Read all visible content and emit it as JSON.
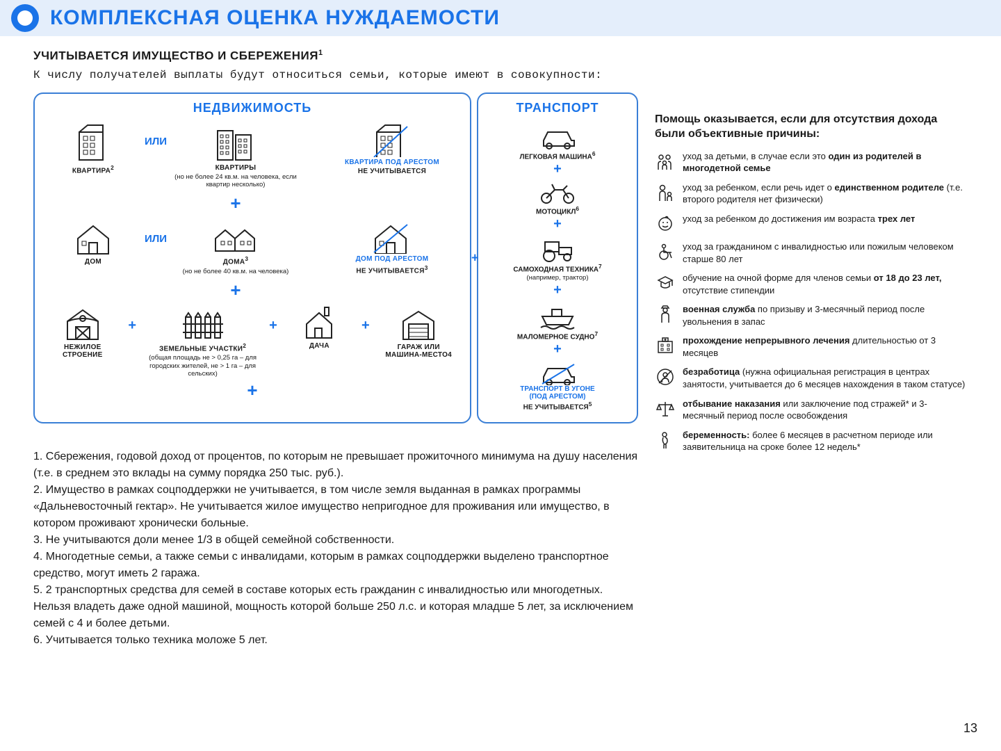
{
  "title": "КОМПЛЕКСНАЯ ОЦЕНКА НУЖДАЕМОСТИ",
  "subhead": "УЧИТЫВАЕТСЯ ИМУЩЕСТВО И СБЕРЕЖЕНИЯ",
  "subhead_sup": "1",
  "intro": "К числу получателей выплаты будут относиться семьи, которые имеют в совокупности:",
  "or_label": "ИЛИ",
  "plus": "+",
  "colors": {
    "accent": "#1a73e8",
    "title_bg": "#e4eefb",
    "text": "#1a1a1a"
  },
  "realty": {
    "heading": "НЕДВИЖИМОСТЬ",
    "kvartira": {
      "label": "КВАРТИРА",
      "sup": "2"
    },
    "kvartiry": {
      "label": "КВАРТИРЫ",
      "note": "(но не более 24 кв.м. на человека, если квартир несколько)"
    },
    "kvartira_arrest": {
      "label": "КВАРТИРА ПОД АРЕСТОМ",
      "sub": "НЕ УЧИТЫВАЕТСЯ"
    },
    "dom": {
      "label": "ДОМ"
    },
    "doma": {
      "label": "ДОМА",
      "sup": "3",
      "note": "(но не более 40 кв.м. на человека)"
    },
    "dom_arrest": {
      "label": "ДОМ ПОД АРЕСТОМ",
      "sub": "НЕ УЧИТЫВАЕТСЯ",
      "sup": "3"
    },
    "nezhiloe": {
      "label": "НЕЖИЛОЕ СТРОЕНИЕ"
    },
    "zemlya": {
      "label": "ЗЕМЕЛЬНЫЕ УЧАСТКИ",
      "sup": "2",
      "note": "(общая площадь не > 0,25 га – для городских жителей, не > 1 га – для сельских)"
    },
    "dacha": {
      "label": "ДАЧА"
    },
    "garage": {
      "label": "ГАРАЖ ИЛИ МАШИНА-МЕСТО4"
    }
  },
  "transport": {
    "heading": "ТРАНСПОРТ",
    "car": {
      "label": "ЛЕГКОВАЯ МАШИНА",
      "sup": "6"
    },
    "moto": {
      "label": "МОТОЦИКЛ",
      "sup": "6"
    },
    "tractor": {
      "label": "САМОХОДНАЯ ТЕХНИКА",
      "sup": "7",
      "note": "(например, трактор)"
    },
    "boat": {
      "label": "МАЛОМЕРНОЕ СУДНО",
      "sup": "7"
    },
    "stolen": {
      "label1": "ТРАНСПОРТ В УГОНЕ",
      "label2": "(ПОД АРЕСТОМ)",
      "sub": "НЕ УЧИТЫВАЕТСЯ",
      "sup": "5"
    }
  },
  "right_heading": "Помощь оказывается, если для отсутствия дохода были объективные причины:",
  "reasons": [
    {
      "icon": "family",
      "html": "уход за детьми, в случае если это <b>один из родителей в многодетной семье</b>"
    },
    {
      "icon": "parent",
      "html": "уход за ребенком, если речь идет о <b>единственном родителе</b> (т.е. второго родителя нет физически)"
    },
    {
      "icon": "baby",
      "html": "уход за ребенком до достижения им возраста <b>трех лет</b>"
    },
    {
      "icon": "wheelchair",
      "html": "уход за гражданином с инвалидностью или пожилым человеком старше 80 лет"
    },
    {
      "icon": "student",
      "html": "обучение на очной форме для членов семьи <b>от 18 до 23 лет,</b> отсутствие стипендии"
    },
    {
      "icon": "military",
      "html": "<b>военная служба</b> по призыву и 3-месячный период после увольнения в запас"
    },
    {
      "icon": "hospital",
      "html": "<b>прохождение непрерывного лечения</b> длительностью от 3 месяцев"
    },
    {
      "icon": "unemployed",
      "html": "<b>безработица</b> (нужна официальная регистрация в центрах занятости, учитывается до 6 месяцев нахождения в таком статусе)"
    },
    {
      "icon": "scales",
      "html": "<b>отбывание наказания</b> или заключение под стражей* и 3-месячный период после освобождения"
    },
    {
      "icon": "pregnant",
      "html": "<b>беременность:</b> более 6 месяцев в расчетном периоде или заявительница на сроке более 12 недель*"
    }
  ],
  "footnotes": [
    "1. Сбережения, годовой доход от процентов, по которым не превышает прожиточного минимума на душу населения (т.е. в среднем это вклады на сумму порядка 250 тыс. руб.).",
    "2. Имущество в рамках соцподдержки не учитывается, в том числе земля выданная в рамках программы «Дальневосточный гектар». Не учитывается жилое имущество непригодное для проживания или имущество, в котором проживают хронически больные.",
    "3. Не учитываются доли менее 1/3 в общей семейной собственности.",
    "4. Многодетные семьи, а также семьи с инвалидами, которым в рамках соцподдержки выделено транспортное средство, могут иметь 2 гаража.",
    "5. 2 транспортных средства для семей в составе которых есть гражданин с инвалидностью или многодетных. Нельзя владеть даже одной машиной, мощность которой больше 250 л.с. и которая младше 5 лет, за исключением семей с 4 и более детьми.",
    "6. Учитывается только техника моложе 5 лет."
  ],
  "page_number": "13"
}
